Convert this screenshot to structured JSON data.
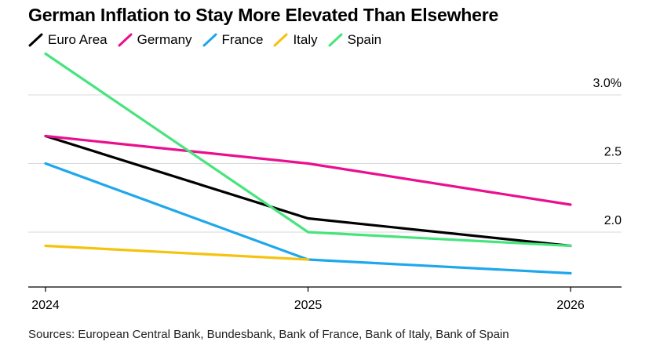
{
  "title": "German Inflation to Stay More Elevated Than Elsewhere",
  "source": "Sources: European Central Bank, Bundesbank, Bank of France, Bank of Italy, Bank of Spain",
  "chart_data": {
    "type": "line",
    "title": "German Inflation to Stay More Elevated Than Elsewhere",
    "xlabel": "",
    "ylabel": "",
    "x": [
      2024,
      2025,
      2026
    ],
    "x_tick_labels": [
      "2024",
      "2025",
      "2026"
    ],
    "y_tick_values": [
      2.0,
      2.5,
      3.0
    ],
    "y_tick_labels": [
      "2.0",
      "2.5",
      "3.0%"
    ],
    "ylim": [
      1.6,
      3.3
    ],
    "grid": true,
    "legend_position": "top-left",
    "series": [
      {
        "name": "Euro Area",
        "color": "#000000",
        "values": [
          2.7,
          2.1,
          1.9
        ]
      },
      {
        "name": "Germany",
        "color": "#ea0f8e",
        "values": [
          2.7,
          2.5,
          2.2
        ]
      },
      {
        "name": "France",
        "color": "#1fa7ec",
        "values": [
          2.5,
          1.8,
          1.7
        ]
      },
      {
        "name": "Italy",
        "color": "#f5c20e",
        "values": [
          1.9,
          1.8,
          null
        ]
      },
      {
        "name": "Spain",
        "color": "#47e47d",
        "values": [
          3.3,
          2.0,
          1.9
        ]
      }
    ]
  }
}
